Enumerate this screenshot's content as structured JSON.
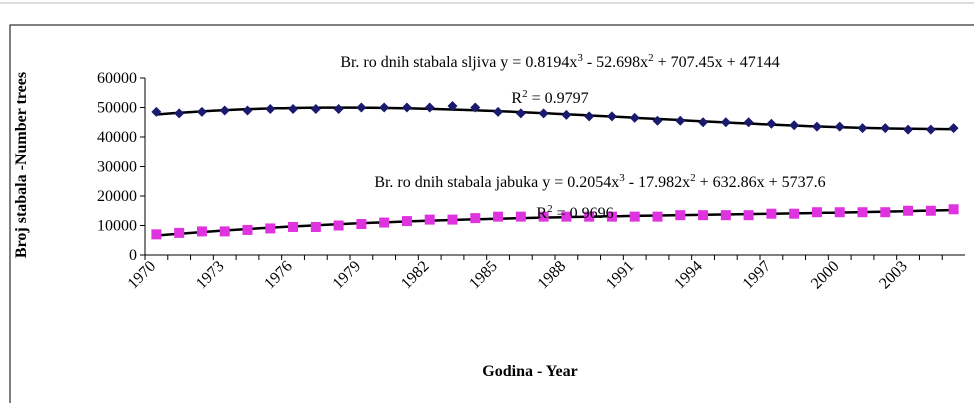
{
  "chart_data": {
    "type": "line",
    "x_label": "Godina - Year",
    "y_label": "Broj stabala -Number trees",
    "categories": [
      "1970",
      null,
      null,
      "1973",
      null,
      null,
      "1976",
      null,
      null,
      "1979",
      null,
      null,
      "1982",
      null,
      null,
      "1985",
      null,
      null,
      "1988",
      null,
      null,
      "1991",
      null,
      null,
      "1994",
      null,
      null,
      "1997",
      null,
      null,
      "2000",
      null,
      null,
      "2003",
      null,
      null
    ],
    "series": [
      {
        "color": "#1a1a6e",
        "marker": "diamond",
        "trendline": "polynomial-3",
        "values": [
          48500,
          48000,
          48500,
          49000,
          49000,
          49500,
          49500,
          49500,
          49500,
          50000,
          50000,
          50000,
          50000,
          50500,
          50000,
          48500,
          48000,
          48000,
          47500,
          47000,
          47000,
          46500,
          45500,
          45500,
          45000,
          45000,
          45000,
          44500,
          44000,
          43500,
          43500,
          43000,
          43000,
          42500,
          42500,
          43000
        ]
      },
      {
        "color": "#e033e0",
        "marker": "square",
        "trendline": "polynomial-3",
        "values": [
          7000,
          7500,
          8000,
          8000,
          8500,
          9000,
          9500,
          9500,
          10000,
          10500,
          11000,
          11500,
          12000,
          12000,
          12500,
          13000,
          13000,
          13000,
          13000,
          13000,
          13000,
          13000,
          13000,
          13500,
          13500,
          13500,
          13500,
          14000,
          14000,
          14500,
          14500,
          14500,
          14500,
          15000,
          15000,
          15500
        ]
      }
    ],
    "annotations": [
      {
        "parts": [
          "Br. ro dnih stabala sljiva  y = 0.8194x",
          "3",
          " - 52.698x",
          "2",
          " + 707.45x + 47144"
        ]
      },
      {
        "parts": [
          "R",
          "2",
          " = 0.9797"
        ]
      },
      {
        "parts": [
          "Br. ro dnih stabala jabuka y = 0.2054x",
          "3",
          " - 17.982x",
          "2",
          " + 632.86x + 5737.6"
        ]
      },
      {
        "parts": [
          "R",
          "2",
          " = 0.9696"
        ]
      }
    ],
    "ylim": [
      0,
      60000
    ],
    "yticks": [
      0,
      10000,
      20000,
      30000,
      40000,
      50000,
      60000
    ]
  }
}
